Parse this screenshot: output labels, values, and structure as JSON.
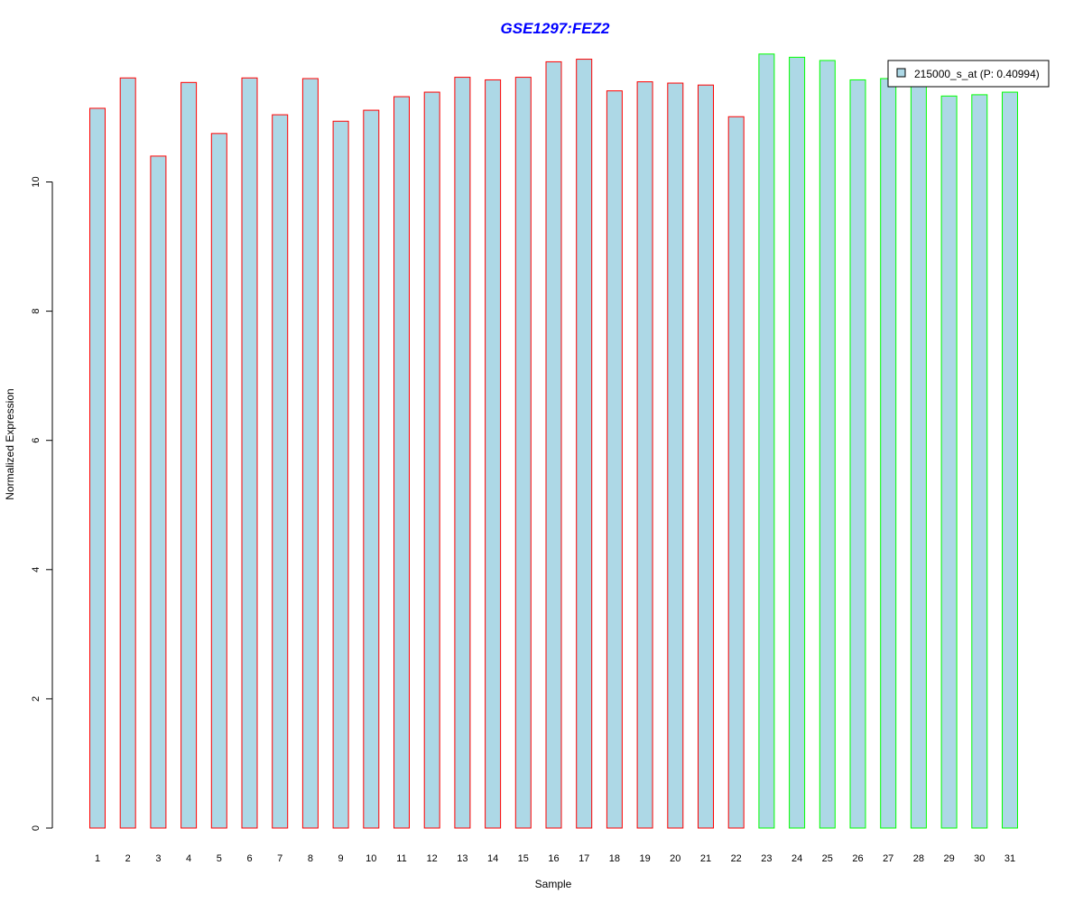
{
  "colors": {
    "title": "#0000ff",
    "bar_fill": "#add8e6",
    "group1_border": "#ff0000",
    "group2_border": "#00ff00",
    "axis": "#000000"
  },
  "chart_data": {
    "type": "bar",
    "title": "GSE1297:FEZ2",
    "xlabel": "Sample",
    "ylabel": "Normalized Expression",
    "ylim": [
      0,
      12
    ],
    "yticks": [
      0,
      2,
      4,
      6,
      8,
      10
    ],
    "grid": false,
    "legend_position": "top-right",
    "legend_label": "215000_s_at (P: 0.40994)",
    "categories": [
      "1",
      "2",
      "3",
      "4",
      "5",
      "6",
      "7",
      "8",
      "9",
      "10",
      "11",
      "12",
      "13",
      "14",
      "15",
      "16",
      "17",
      "18",
      "19",
      "20",
      "21",
      "22",
      "23",
      "24",
      "25",
      "26",
      "27",
      "28",
      "29",
      "30",
      "31"
    ],
    "values": [
      11.14,
      11.61,
      10.4,
      11.54,
      10.75,
      11.61,
      11.04,
      11.6,
      10.94,
      11.11,
      11.32,
      11.39,
      11.62,
      11.58,
      11.62,
      11.86,
      11.9,
      11.41,
      11.55,
      11.53,
      11.5,
      11.01,
      11.98,
      11.93,
      11.88,
      11.58,
      11.6,
      11.55,
      11.33,
      11.35,
      11.39
    ],
    "groups": [
      "A",
      "A",
      "A",
      "A",
      "A",
      "A",
      "A",
      "A",
      "A",
      "A",
      "A",
      "A",
      "A",
      "A",
      "A",
      "A",
      "A",
      "A",
      "A",
      "A",
      "A",
      "A",
      "B",
      "B",
      "B",
      "B",
      "B",
      "B",
      "B",
      "B",
      "B"
    ]
  }
}
